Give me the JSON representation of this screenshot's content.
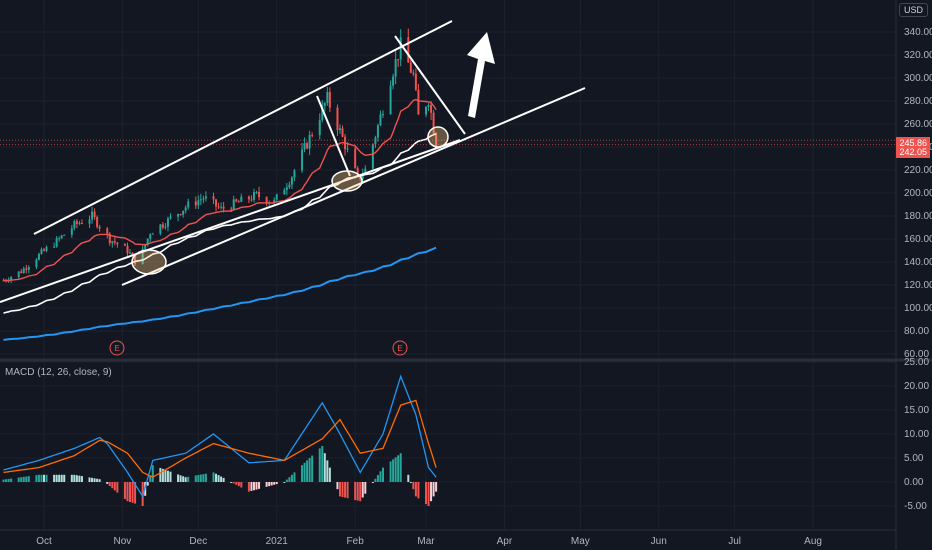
{
  "currency": "USD",
  "price_badges": {
    "last": "245.86",
    "prev": "242.05"
  },
  "macd_label": "MACD (12, 26, close, 9)",
  "earnings_marker": "E",
  "colors": {
    "background": "#131722",
    "grid": "#1e222d",
    "up_candle": "#26a69a",
    "down_candle": "#ef5350",
    "ema_short": "#ef5350",
    "sma_mid": "#ffffff",
    "sma_long": "#2196f3",
    "macd_line": "#2196f3",
    "signal_line": "#ff6d00",
    "hist_up": "#b2dfdb",
    "hist_up_strong": "#26a69a",
    "hist_down": "#ffcdd2",
    "hist_down_strong": "#ef5350",
    "drawings": "#ffffff"
  },
  "chart_data": [
    {
      "type": "candlestick",
      "title": "",
      "xlabel": "",
      "ylabel": "",
      "x_ticks": [
        "Oct",
        "Nov",
        "Dec",
        "2021",
        "Feb",
        "Mar",
        "Apr",
        "May",
        "Jun",
        "Jul",
        "Aug"
      ],
      "y_ticks": [
        60,
        80,
        100,
        120,
        140,
        160,
        180,
        200,
        220,
        240,
        260,
        280,
        300,
        320,
        340
      ],
      "ylim": [
        60,
        360
      ],
      "grid": true,
      "close_series": [
        {
          "date": "2020-09-15",
          "close": 124
        },
        {
          "date": "2020-09-22",
          "close": 132
        },
        {
          "date": "2020-09-29",
          "close": 146
        },
        {
          "date": "2020-10-06",
          "close": 158
        },
        {
          "date": "2020-10-13",
          "close": 172
        },
        {
          "date": "2020-10-20",
          "close": 180
        },
        {
          "date": "2020-10-27",
          "close": 160
        },
        {
          "date": "2020-11-03",
          "close": 150
        },
        {
          "date": "2020-11-07",
          "close": 138
        },
        {
          "date": "2020-11-12",
          "close": 166
        },
        {
          "date": "2020-11-19",
          "close": 176
        },
        {
          "date": "2020-11-26",
          "close": 188
        },
        {
          "date": "2020-12-03",
          "close": 196
        },
        {
          "date": "2020-12-10",
          "close": 186
        },
        {
          "date": "2020-12-17",
          "close": 192
        },
        {
          "date": "2020-12-24",
          "close": 198
        },
        {
          "date": "2020-12-31",
          "close": 192
        },
        {
          "date": "2021-01-07",
          "close": 215
        },
        {
          "date": "2021-01-14",
          "close": 248
        },
        {
          "date": "2021-01-21",
          "close": 282
        },
        {
          "date": "2021-01-28",
          "close": 242
        },
        {
          "date": "2021-02-02",
          "close": 212
        },
        {
          "date": "2021-02-05",
          "close": 220
        },
        {
          "date": "2021-02-10",
          "close": 258
        },
        {
          "date": "2021-02-15",
          "close": 300
        },
        {
          "date": "2021-02-19",
          "close": 328
        },
        {
          "date": "2021-02-24",
          "close": 302
        },
        {
          "date": "2021-02-26",
          "close": 266
        },
        {
          "date": "2021-03-02",
          "close": 282
        },
        {
          "date": "2021-03-05",
          "close": 244
        }
      ],
      "indicators": [
        {
          "name": "short moving average",
          "color": "#ef5350"
        },
        {
          "name": "medium moving average",
          "color": "#ffffff"
        },
        {
          "name": "long moving average",
          "color": "#2196f3"
        }
      ],
      "annotations": [
        "ascending channel",
        "support trendline",
        "upward arrow",
        "circled bounces"
      ]
    },
    {
      "type": "bar",
      "title": "MACD (12, 26, close, 9)",
      "y_ticks": [
        -5,
        0,
        5,
        10,
        15,
        20,
        25
      ],
      "ylim": [
        -8,
        25
      ],
      "series": [
        {
          "name": "MACD",
          "color": "#2196f3"
        },
        {
          "name": "Signal",
          "color": "#ff6d00"
        }
      ],
      "macd_points": [
        {
          "date": "2020-09-15",
          "macd": 2.5,
          "signal": 2.0
        },
        {
          "date": "2020-09-29",
          "macd": 4.5,
          "signal": 3.0
        },
        {
          "date": "2020-10-13",
          "macd": 7.0,
          "signal": 5.5
        },
        {
          "date": "2020-10-24",
          "macd": 9.5,
          "signal": 9.0
        },
        {
          "date": "2020-11-03",
          "macd": 2.0,
          "signal": 6.0
        },
        {
          "date": "2020-11-09",
          "macd": -3.0,
          "signal": 2.0
        },
        {
          "date": "2020-11-13",
          "macd": 4.5,
          "signal": 1.0
        },
        {
          "date": "2020-11-26",
          "macd": 6.0,
          "signal": 5.0
        },
        {
          "date": "2020-12-07",
          "macd": 10.0,
          "signal": 8.0
        },
        {
          "date": "2020-12-21",
          "macd": 4.0,
          "signal": 6.0
        },
        {
          "date": "2021-01-04",
          "macd": 4.5,
          "signal": 4.5
        },
        {
          "date": "2021-01-19",
          "macd": 16.5,
          "signal": 9.0
        },
        {
          "date": "2021-01-26",
          "macd": 10.0,
          "signal": 13.0
        },
        {
          "date": "2021-02-03",
          "macd": 2.0,
          "signal": 6.0
        },
        {
          "date": "2021-02-12",
          "macd": 10.0,
          "signal": 7.0
        },
        {
          "date": "2021-02-19",
          "macd": 22.0,
          "signal": 16.0
        },
        {
          "date": "2021-02-25",
          "macd": 14.0,
          "signal": 17.0
        },
        {
          "date": "2021-03-02",
          "macd": 3.0,
          "signal": 8.0
        },
        {
          "date": "2021-03-05",
          "macd": 1.0,
          "signal": 3.0
        }
      ]
    }
  ]
}
